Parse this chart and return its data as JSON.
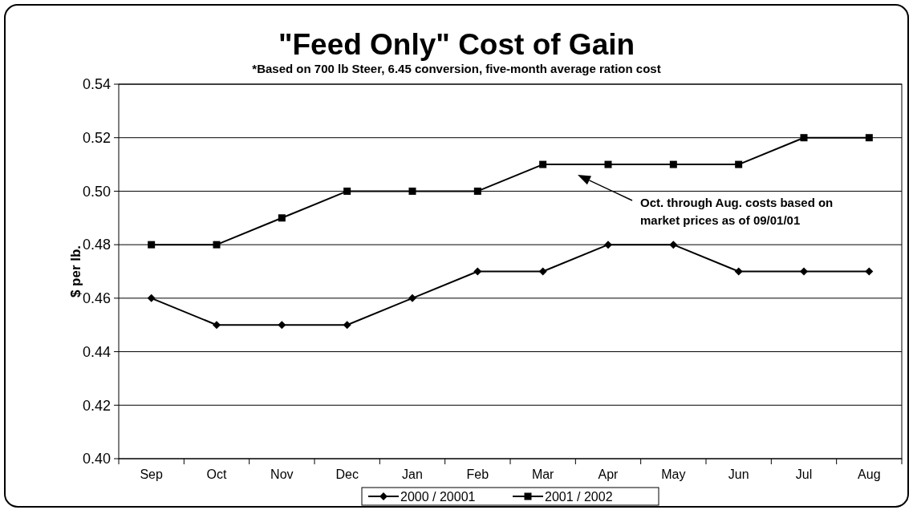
{
  "chart_data": {
    "type": "line",
    "title": "\"Feed Only\" Cost of Gain",
    "subtitle": "*Based on 700 lb Steer, 6.45 conversion, five-month average ration cost",
    "ylabel": "$ per lb.",
    "categories": [
      "Sep",
      "Oct",
      "Nov",
      "Dec",
      "Jan",
      "Feb",
      "Mar",
      "Apr",
      "May",
      "Jun",
      "Jul",
      "Aug"
    ],
    "series": [
      {
        "name": "2000 / 20001",
        "color": "#000000",
        "marker": "diamond",
        "values": [
          0.46,
          0.45,
          0.45,
          0.45,
          0.46,
          0.47,
          0.47,
          0.48,
          0.48,
          0.47,
          0.47,
          0.47
        ]
      },
      {
        "name": "2001 / 2002",
        "color": "#000000",
        "marker": "square",
        "values": [
          0.48,
          0.48,
          0.49,
          0.5,
          0.5,
          0.5,
          0.51,
          0.51,
          0.51,
          0.51,
          0.52,
          0.52
        ]
      }
    ],
    "ylim": [
      0.4,
      0.54
    ],
    "yticks": [
      {
        "value": 0.4,
        "label": "0.40"
      },
      {
        "value": 0.42,
        "label": "0.42"
      },
      {
        "value": 0.44,
        "label": "0.44"
      },
      {
        "value": 0.46,
        "label": "0.46"
      },
      {
        "value": 0.48,
        "label": "0.48"
      },
      {
        "value": 0.5,
        "label": "0.50"
      },
      {
        "value": 0.52,
        "label": "0.52"
      },
      {
        "value": 0.54,
        "label": "0.54"
      }
    ],
    "grid": "y",
    "legend": "bottom",
    "line_style": "solid",
    "annotations": [
      "Oct. through Aug. costs based on market prices as of 09/01/01"
    ]
  }
}
